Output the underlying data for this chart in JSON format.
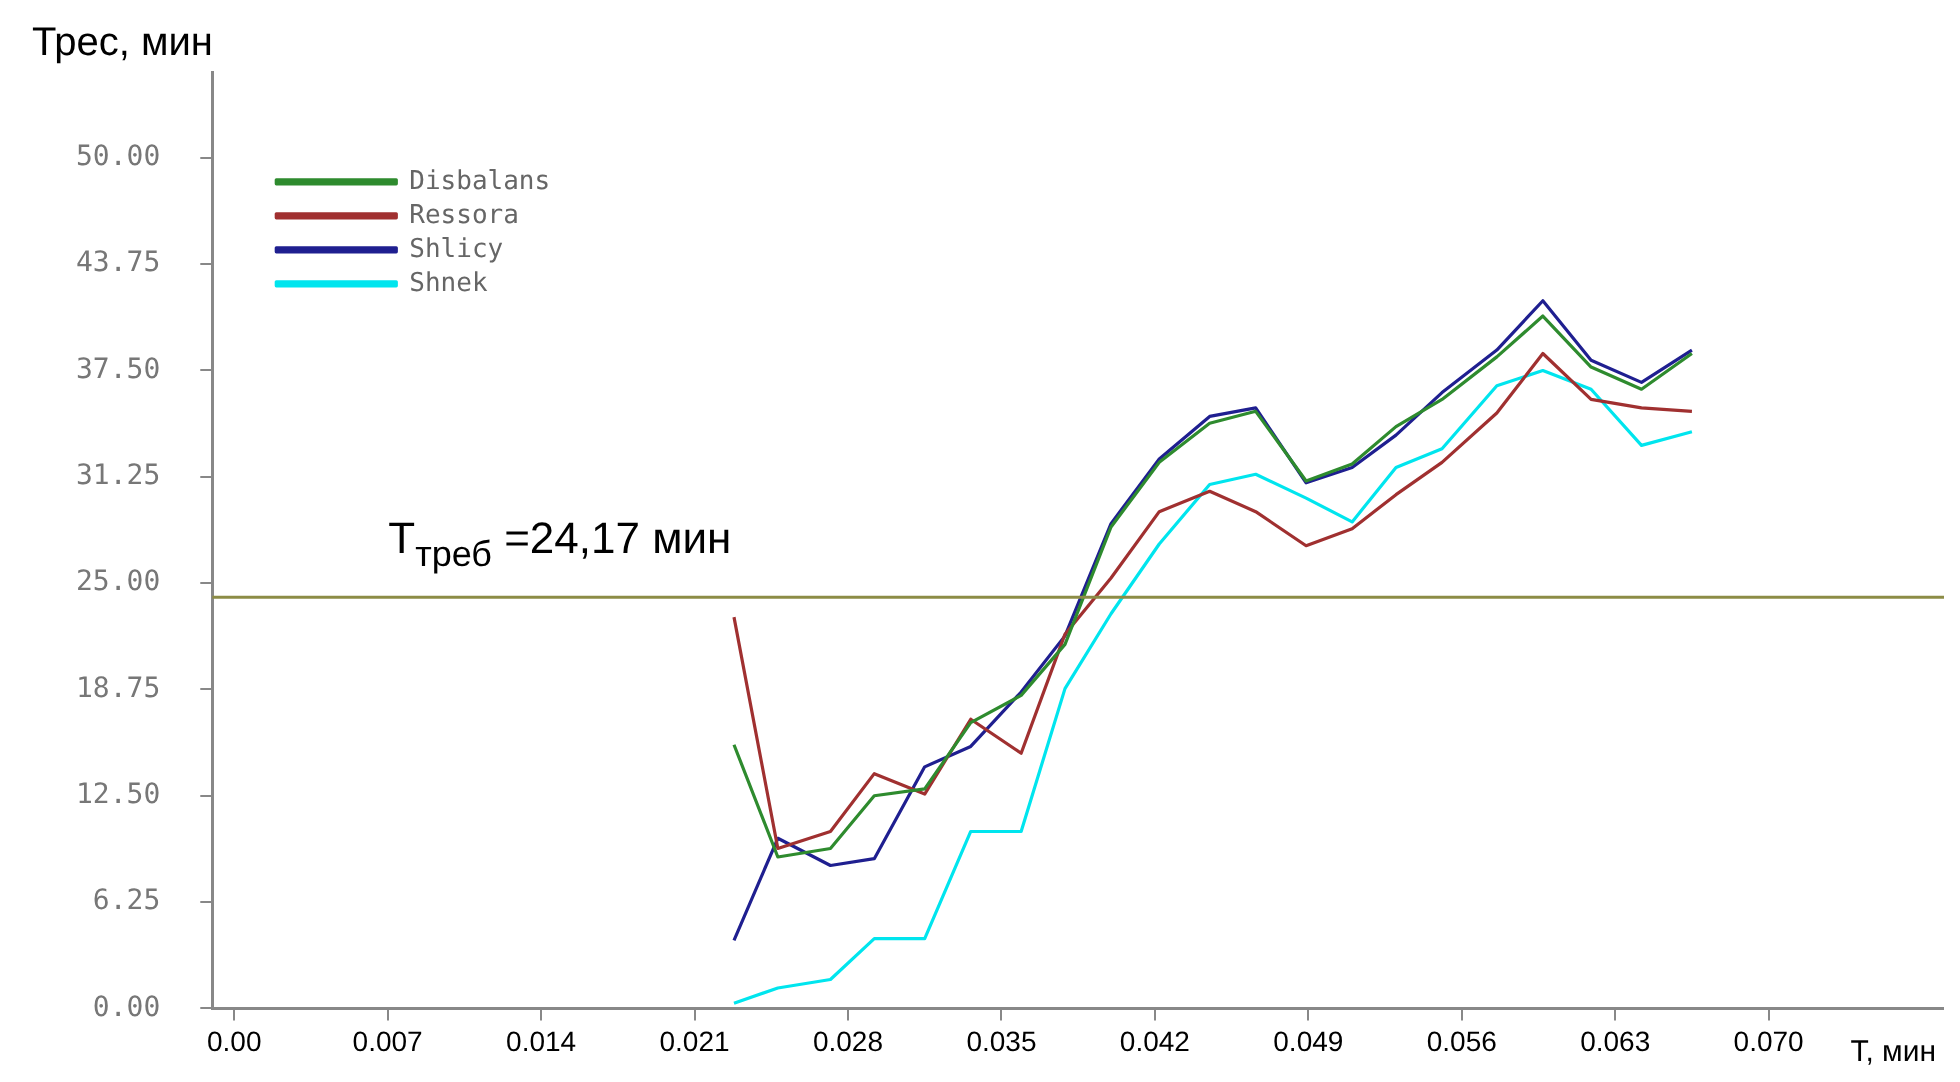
{
  "chart_data": {
    "type": "line",
    "xlabel": "Т, мин",
    "ylabel": "Трес, мин",
    "x": [
      0.0228,
      0.0248,
      0.0272,
      0.0292,
      0.0315,
      0.0336,
      0.0359,
      0.0379,
      0.04,
      0.0422,
      0.0445,
      0.0466,
      0.0489,
      0.051,
      0.053,
      0.0551,
      0.0576,
      0.0597,
      0.0619,
      0.0642,
      0.0665
    ],
    "series": [
      {
        "name": "Disbalans",
        "color": "#2e8b2e",
        "values": [
          15.5,
          8.9,
          9.4,
          12.5,
          12.9,
          16.8,
          18.4,
          21.4,
          28.3,
          32.1,
          34.4,
          35.1,
          31.0,
          32.0,
          34.2,
          35.8,
          38.3,
          40.7,
          37.7,
          36.4,
          38.5
        ]
      },
      {
        "name": "Ressora",
        "color": "#a03030",
        "values": [
          23.0,
          9.4,
          10.4,
          13.8,
          12.6,
          17.0,
          15.0,
          22.0,
          25.3,
          29.2,
          30.4,
          29.2,
          27.2,
          28.2,
          30.2,
          32.1,
          35.0,
          38.5,
          35.8,
          35.3,
          35.1
        ]
      },
      {
        "name": "Shlicy",
        "color": "#1f1f90",
        "values": [
          4.0,
          10.0,
          8.4,
          8.8,
          14.2,
          15.4,
          18.6,
          21.9,
          28.5,
          32.3,
          34.8,
          35.3,
          30.9,
          31.8,
          33.7,
          36.2,
          38.7,
          41.6,
          38.1,
          36.8,
          38.7
        ]
      },
      {
        "name": "Shnek",
        "color": "#00e5ee",
        "values": [
          0.3,
          1.2,
          1.7,
          4.1,
          4.1,
          10.4,
          10.4,
          18.8,
          23.2,
          27.3,
          30.8,
          31.4,
          30.0,
          28.6,
          31.8,
          32.9,
          36.6,
          37.5,
          36.4,
          33.1,
          33.9
        ]
      }
    ],
    "xlim": [
      -0.001,
      0.078
    ],
    "xticks": [
      {
        "value": 0,
        "label": "0.00"
      },
      0.007,
      0.014,
      0.021,
      0.028,
      0.035,
      0.042,
      0.049,
      0.056,
      0.063,
      {
        "value": 0.07,
        "label": "0.070"
      }
    ],
    "ylim": [
      0,
      55
    ],
    "yticks": [
      {
        "value": 0,
        "label": "0.00"
      },
      6.25,
      {
        "value": 12.5,
        "label": "12.50"
      },
      18.75,
      {
        "value": 25,
        "label": "25.00"
      },
      31.25,
      {
        "value": 37.5,
        "label": "37.50"
      },
      43.75,
      {
        "value": 50,
        "label": "50.00"
      }
    ],
    "ref_lines": [
      {
        "axis": "y",
        "value": 24.17,
        "label": "T$_{треб}$ =24,17 мин",
        "color": "#8c8c46"
      }
    ],
    "grid": false,
    "legend": "top left",
    "marker": "none",
    "line_style": "solid"
  }
}
